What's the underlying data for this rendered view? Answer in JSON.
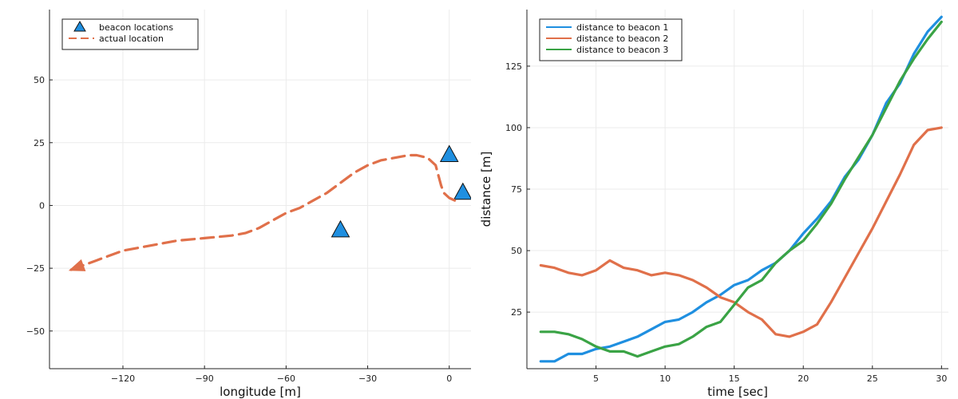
{
  "chart_data": [
    {
      "type": "scatter",
      "xlabel": "longitude [m]",
      "ylabel": "",
      "xlim": [
        -147,
        8
      ],
      "ylim": [
        -65,
        78
      ],
      "xticks": [
        -120,
        -90,
        -60,
        -30,
        0
      ],
      "yticks": [
        -50,
        -25,
        0,
        25,
        50
      ],
      "tick_labels": {
        "x": [
          "−120",
          "−90",
          "−60",
          "−30",
          "0"
        ],
        "y": [
          "−50",
          "−25",
          "0",
          "25",
          "50"
        ]
      },
      "grid": true,
      "legend_position": "top-left",
      "legend": [
        "beacon locations",
        "actual location"
      ],
      "series": [
        {
          "name": "beacon locations",
          "type": "scatter",
          "marker": "triangle",
          "color": "#1f8fe0",
          "x": [
            0,
            5,
            -40
          ],
          "y": [
            20,
            5,
            -10
          ]
        },
        {
          "name": "actual location",
          "type": "line",
          "style": "dashed",
          "arrow": true,
          "color": "#e0704a",
          "x": [
            2,
            0,
            -2,
            -3,
            -4,
            -5,
            -8,
            -12,
            -15,
            -20,
            -25,
            -30,
            -35,
            -40,
            -45,
            -50,
            -55,
            -60,
            -65,
            -70,
            -75,
            -80,
            -90,
            -100,
            -110,
            -120,
            -130,
            -140
          ],
          "y": [
            2,
            3,
            5,
            8,
            12,
            16,
            19,
            20,
            20,
            19,
            18,
            16,
            13,
            9,
            5,
            2,
            -1,
            -3,
            -6,
            -9,
            -11,
            -12,
            -13,
            -14,
            -16,
            -18,
            -22,
            -26
          ]
        }
      ]
    },
    {
      "type": "line",
      "xlabel": "time [sec]",
      "ylabel": "distance [m]",
      "xlim": [
        0,
        30.5
      ],
      "ylim": [
        2,
        148
      ],
      "xticks": [
        5,
        10,
        15,
        20,
        25,
        30
      ],
      "yticks": [
        25,
        50,
        75,
        100,
        125
      ],
      "grid": true,
      "legend_position": "top-left",
      "legend": [
        "distance to beacon 1",
        "distance to beacon 2",
        "distance to beacon 3"
      ],
      "series": [
        {
          "name": "distance to beacon 1",
          "color": "#1f8fe0",
          "x": [
            1,
            2,
            3,
            4,
            5,
            6,
            7,
            8,
            9,
            10,
            11,
            12,
            13,
            14,
            15,
            16,
            17,
            18,
            19,
            20,
            21,
            22,
            23,
            24,
            25,
            26,
            27,
            28,
            29,
            30
          ],
          "y": [
            5,
            5,
            8,
            8,
            10,
            11,
            13,
            15,
            18,
            21,
            22,
            25,
            29,
            32,
            36,
            38,
            42,
            45,
            50,
            57,
            63,
            70,
            80,
            87,
            97,
            110,
            118,
            130,
            139,
            145
          ]
        },
        {
          "name": "distance to beacon 2",
          "color": "#e0704a",
          "x": [
            1,
            2,
            3,
            4,
            5,
            6,
            7,
            8,
            9,
            10,
            11,
            12,
            13,
            14,
            15,
            16,
            17,
            18,
            19,
            20,
            21,
            22,
            23,
            24,
            25,
            26,
            27,
            28,
            29,
            30
          ],
          "y": [
            44,
            43,
            41,
            40,
            42,
            46,
            43,
            42,
            40,
            41,
            40,
            38,
            35,
            31,
            29,
            25,
            22,
            16,
            15,
            17,
            20,
            29,
            39,
            49,
            59,
            70,
            81,
            93,
            99,
            100
          ]
        },
        {
          "name": "distance to beacon 3",
          "color": "#3aa345",
          "x": [
            1,
            2,
            3,
            4,
            5,
            6,
            7,
            8,
            9,
            10,
            11,
            12,
            13,
            14,
            15,
            16,
            17,
            18,
            19,
            20,
            21,
            22,
            23,
            24,
            25,
            26,
            27,
            28,
            29,
            30
          ],
          "y": [
            17,
            17,
            16,
            14,
            11,
            9,
            9,
            7,
            9,
            11,
            12,
            15,
            19,
            21,
            28,
            35,
            38,
            45,
            50,
            54,
            61,
            69,
            79,
            88,
            97,
            108,
            119,
            128,
            136,
            143
          ]
        }
      ]
    }
  ]
}
